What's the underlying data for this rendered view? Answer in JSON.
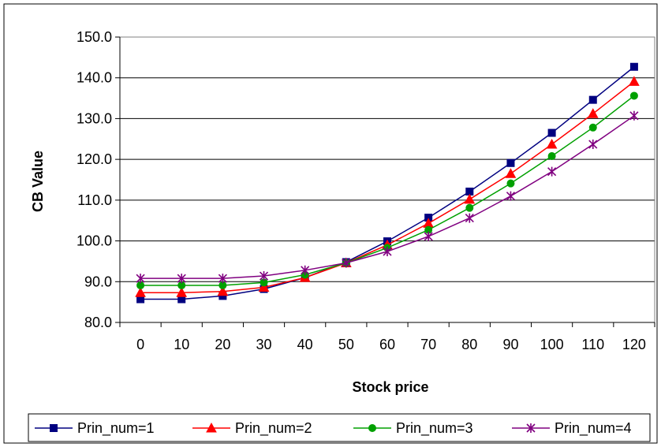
{
  "chart_data": {
    "type": "line",
    "title": "",
    "xlabel": "Stock price",
    "ylabel": "CB Value",
    "categories": [
      "0",
      "10",
      "20",
      "30",
      "40",
      "50",
      "60",
      "70",
      "80",
      "90",
      "100",
      "110",
      "120"
    ],
    "yticks": [
      "80.0",
      "90.0",
      "100.0",
      "110.0",
      "120.0",
      "130.0",
      "140.0",
      "150.0"
    ],
    "ylim": [
      80,
      150
    ],
    "grid": "horizontal",
    "legend_position": "bottom",
    "series": [
      {
        "name": "Prin_num=1",
        "color": "#000080",
        "marker": "square",
        "values": [
          85.7,
          85.7,
          86.5,
          88.2,
          91.0,
          94.8,
          99.9,
          105.7,
          112.1,
          119.1,
          126.5,
          134.6,
          142.7
        ]
      },
      {
        "name": "Prin_num=2",
        "color": "#ff0000",
        "marker": "triangle",
        "values": [
          87.3,
          87.3,
          87.6,
          88.6,
          91.0,
          94.6,
          99.0,
          104.3,
          110.2,
          116.5,
          123.7,
          131.2,
          139.1
        ]
      },
      {
        "name": "Prin_num=3",
        "color": "#00a000",
        "marker": "circle",
        "values": [
          89.1,
          89.1,
          89.1,
          89.8,
          91.7,
          94.6,
          98.3,
          102.7,
          108.1,
          114.1,
          120.8,
          127.8,
          135.6
        ]
      },
      {
        "name": "Prin_num=4",
        "color": "#800080",
        "marker": "star",
        "values": [
          90.8,
          90.8,
          90.8,
          91.4,
          92.8,
          94.6,
          97.4,
          101.1,
          105.6,
          111.0,
          117.0,
          123.7,
          130.7
        ]
      }
    ]
  }
}
